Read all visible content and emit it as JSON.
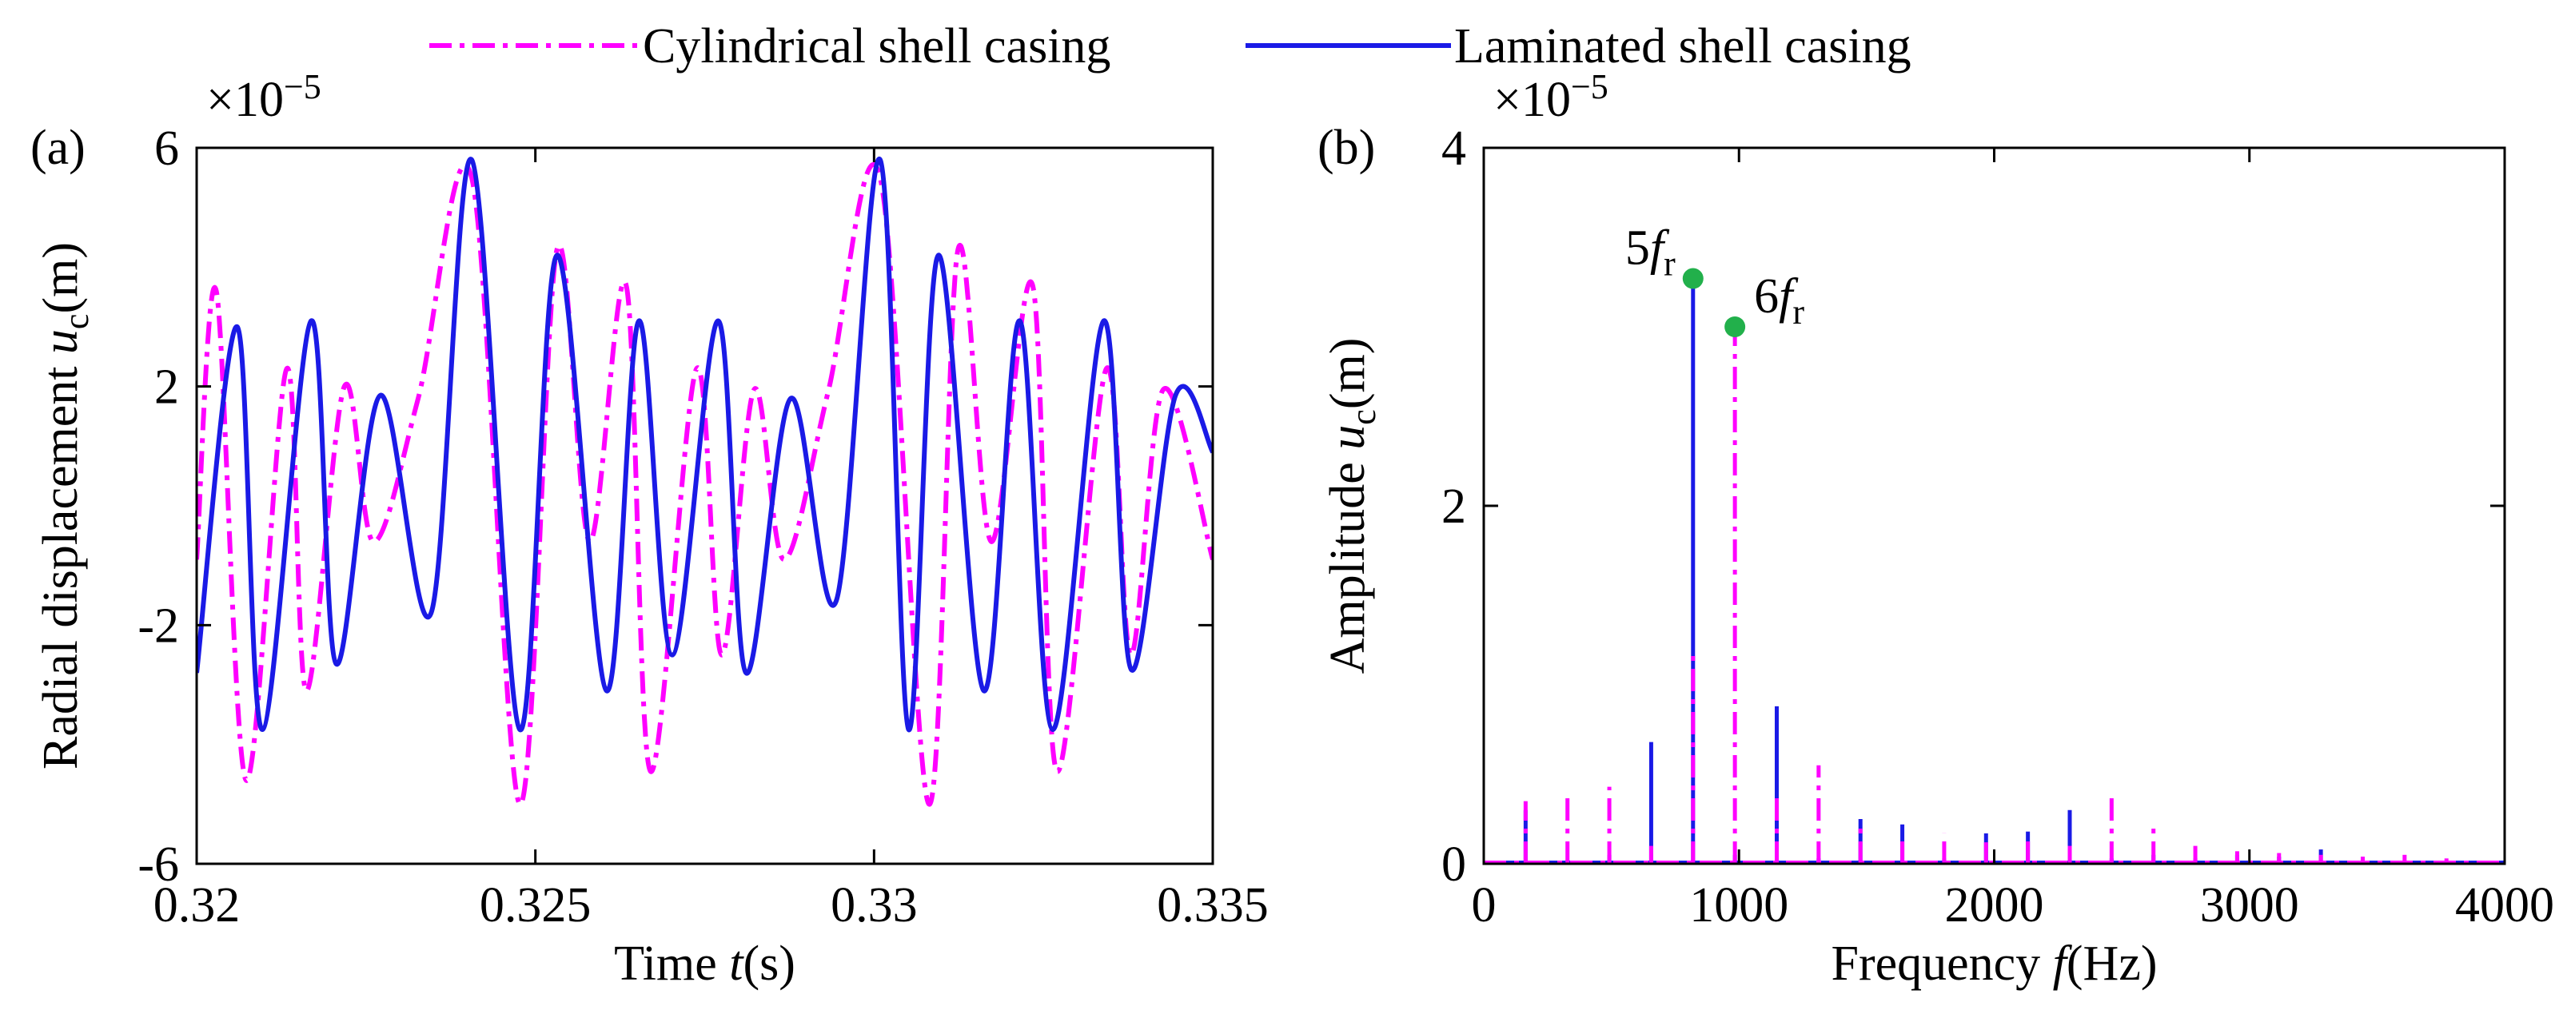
{
  "chart_data": [
    {
      "type": "line",
      "panel": "(a)",
      "multiplier": [
        {
          "text": "×10",
          "style": "normal"
        },
        {
          "text": "−5",
          "style": "sup"
        }
      ],
      "xlabel": [
        {
          "text": "Time ",
          "style": "normal"
        },
        {
          "text": "t",
          "style": "italic"
        },
        {
          "text": "(s)",
          "style": "normal"
        }
      ],
      "ylabel": [
        {
          "text": "Radial displacement ",
          "style": "normal"
        },
        {
          "text": "u",
          "style": "italic"
        },
        {
          "text": "c",
          "style": "sub"
        },
        {
          "text": "(m)",
          "style": "normal"
        }
      ],
      "xlim": [
        0.32,
        0.335
      ],
      "xticks": [
        0.32,
        0.325,
        0.33,
        0.335
      ],
      "ylim": [
        -6,
        6
      ],
      "yticks": [
        -6,
        -2,
        2,
        6
      ],
      "series": [
        {
          "name": "Cylindrical shell casing",
          "color": "#ff00ff",
          "style": "dashdot",
          "x": [
            0.32,
            0.32029,
            0.32073,
            0.32133,
            0.32162,
            0.32218,
            0.32261,
            0.32327,
            0.32406,
            0.32477,
            0.32532,
            0.3258,
            0.32634,
            0.3267,
            0.32738,
            0.32775,
            0.32823,
            0.32867,
            0.32932,
            0.33009,
            0.33081,
            0.33124,
            0.33173,
            0.33234,
            0.3327,
            0.33343,
            0.33379,
            0.33427,
            0.335
          ],
          "values": [
            -0.9,
            3.6,
            -4.6,
            2.3,
            -3.1,
            2.0,
            -0.6,
            1.8,
            5.5,
            -5.0,
            4.3,
            -0.6,
            3.7,
            -4.45,
            2.3,
            -2.5,
            1.95,
            -0.9,
            1.9,
            5.5,
            -5.0,
            4.3,
            -0.6,
            3.7,
            -4.45,
            2.3,
            -2.5,
            1.95,
            -0.9
          ]
        },
        {
          "name": "Laminated shell casing",
          "color": "#1a1ae6",
          "style": "solid",
          "x": [
            0.32,
            0.3206,
            0.32097,
            0.32169,
            0.32206,
            0.32271,
            0.32346,
            0.32406,
            0.32477,
            0.32532,
            0.32605,
            0.32653,
            0.32702,
            0.3277,
            0.32811,
            0.32877,
            0.32944,
            0.33009,
            0.33051,
            0.33095,
            0.33162,
            0.33215,
            0.33264,
            0.33339,
            0.3338,
            0.33445,
            0.335
          ],
          "values": [
            -2.8,
            3.0,
            -3.75,
            3.1,
            -2.65,
            1.85,
            -1.8,
            5.8,
            -3.75,
            4.2,
            -3.1,
            3.1,
            -2.5,
            3.1,
            -2.8,
            1.8,
            -1.6,
            5.8,
            -3.75,
            4.2,
            -3.1,
            3.1,
            -3.75,
            3.1,
            -2.75,
            1.85,
            0.9
          ]
        }
      ]
    },
    {
      "type": "stem",
      "panel": "(b)",
      "multiplier": [
        {
          "text": "×10",
          "style": "normal"
        },
        {
          "text": "−5",
          "style": "sup"
        }
      ],
      "xlabel": [
        {
          "text": "Frequency ",
          "style": "normal"
        },
        {
          "text": "f",
          "style": "italic"
        },
        {
          "text": "(Hz)",
          "style": "normal"
        }
      ],
      "ylabel": [
        {
          "text": "Amplitude ",
          "style": "normal"
        },
        {
          "text": "u",
          "style": "italic"
        },
        {
          "text": "c",
          "style": "sub"
        },
        {
          "text": "(m)",
          "style": "normal"
        }
      ],
      "xlim": [
        0,
        4000
      ],
      "xticks": [
        0,
        1000,
        2000,
        3000,
        4000
      ],
      "ylim": [
        0,
        4
      ],
      "yticks": [
        0,
        2,
        4
      ],
      "x": [
        164,
        328,
        492,
        656,
        820,
        984,
        1148,
        1312,
        1476,
        1640,
        1804,
        1968,
        2132,
        2296,
        2460,
        2624,
        2788,
        2952,
        3116,
        3280,
        3444,
        3608,
        3772
      ],
      "series": [
        {
          "color": "#1a1ae6",
          "style": "solid",
          "values": [
            0.3,
            0.02,
            0.05,
            0.68,
            3.25,
            0.05,
            0.88,
            0.03,
            0.25,
            0.22,
            0.03,
            0.17,
            0.18,
            0.3,
            0.03,
            0.05,
            0.03,
            0.05,
            0.04,
            0.08,
            0.03,
            0.01,
            0.01
          ]
        },
        {
          "color": "#ff00ff",
          "style": "dashdot",
          "values": [
            0.35,
            0.37,
            0.43,
            0.1,
            1.2,
            3.0,
            0.4,
            0.55,
            0.22,
            0.15,
            0.17,
            0.12,
            0.15,
            0.1,
            0.37,
            0.2,
            0.1,
            0.07,
            0.06,
            0.05,
            0.04,
            0.05,
            0.03
          ]
        }
      ],
      "annotation_color": "#22b04b",
      "annotations": [
        {
          "x": 820,
          "y": 3.27,
          "side": "left",
          "text": [
            {
              "text": "5",
              "style": "normal"
            },
            {
              "text": "f",
              "style": "italic"
            },
            {
              "text": "r",
              "style": "sub"
            }
          ]
        },
        {
          "x": 984,
          "y": 3.0,
          "side": "right",
          "text": [
            {
              "text": "6",
              "style": "normal"
            },
            {
              "text": "f",
              "style": "italic"
            },
            {
              "text": "r",
              "style": "sub"
            }
          ]
        }
      ]
    }
  ]
}
